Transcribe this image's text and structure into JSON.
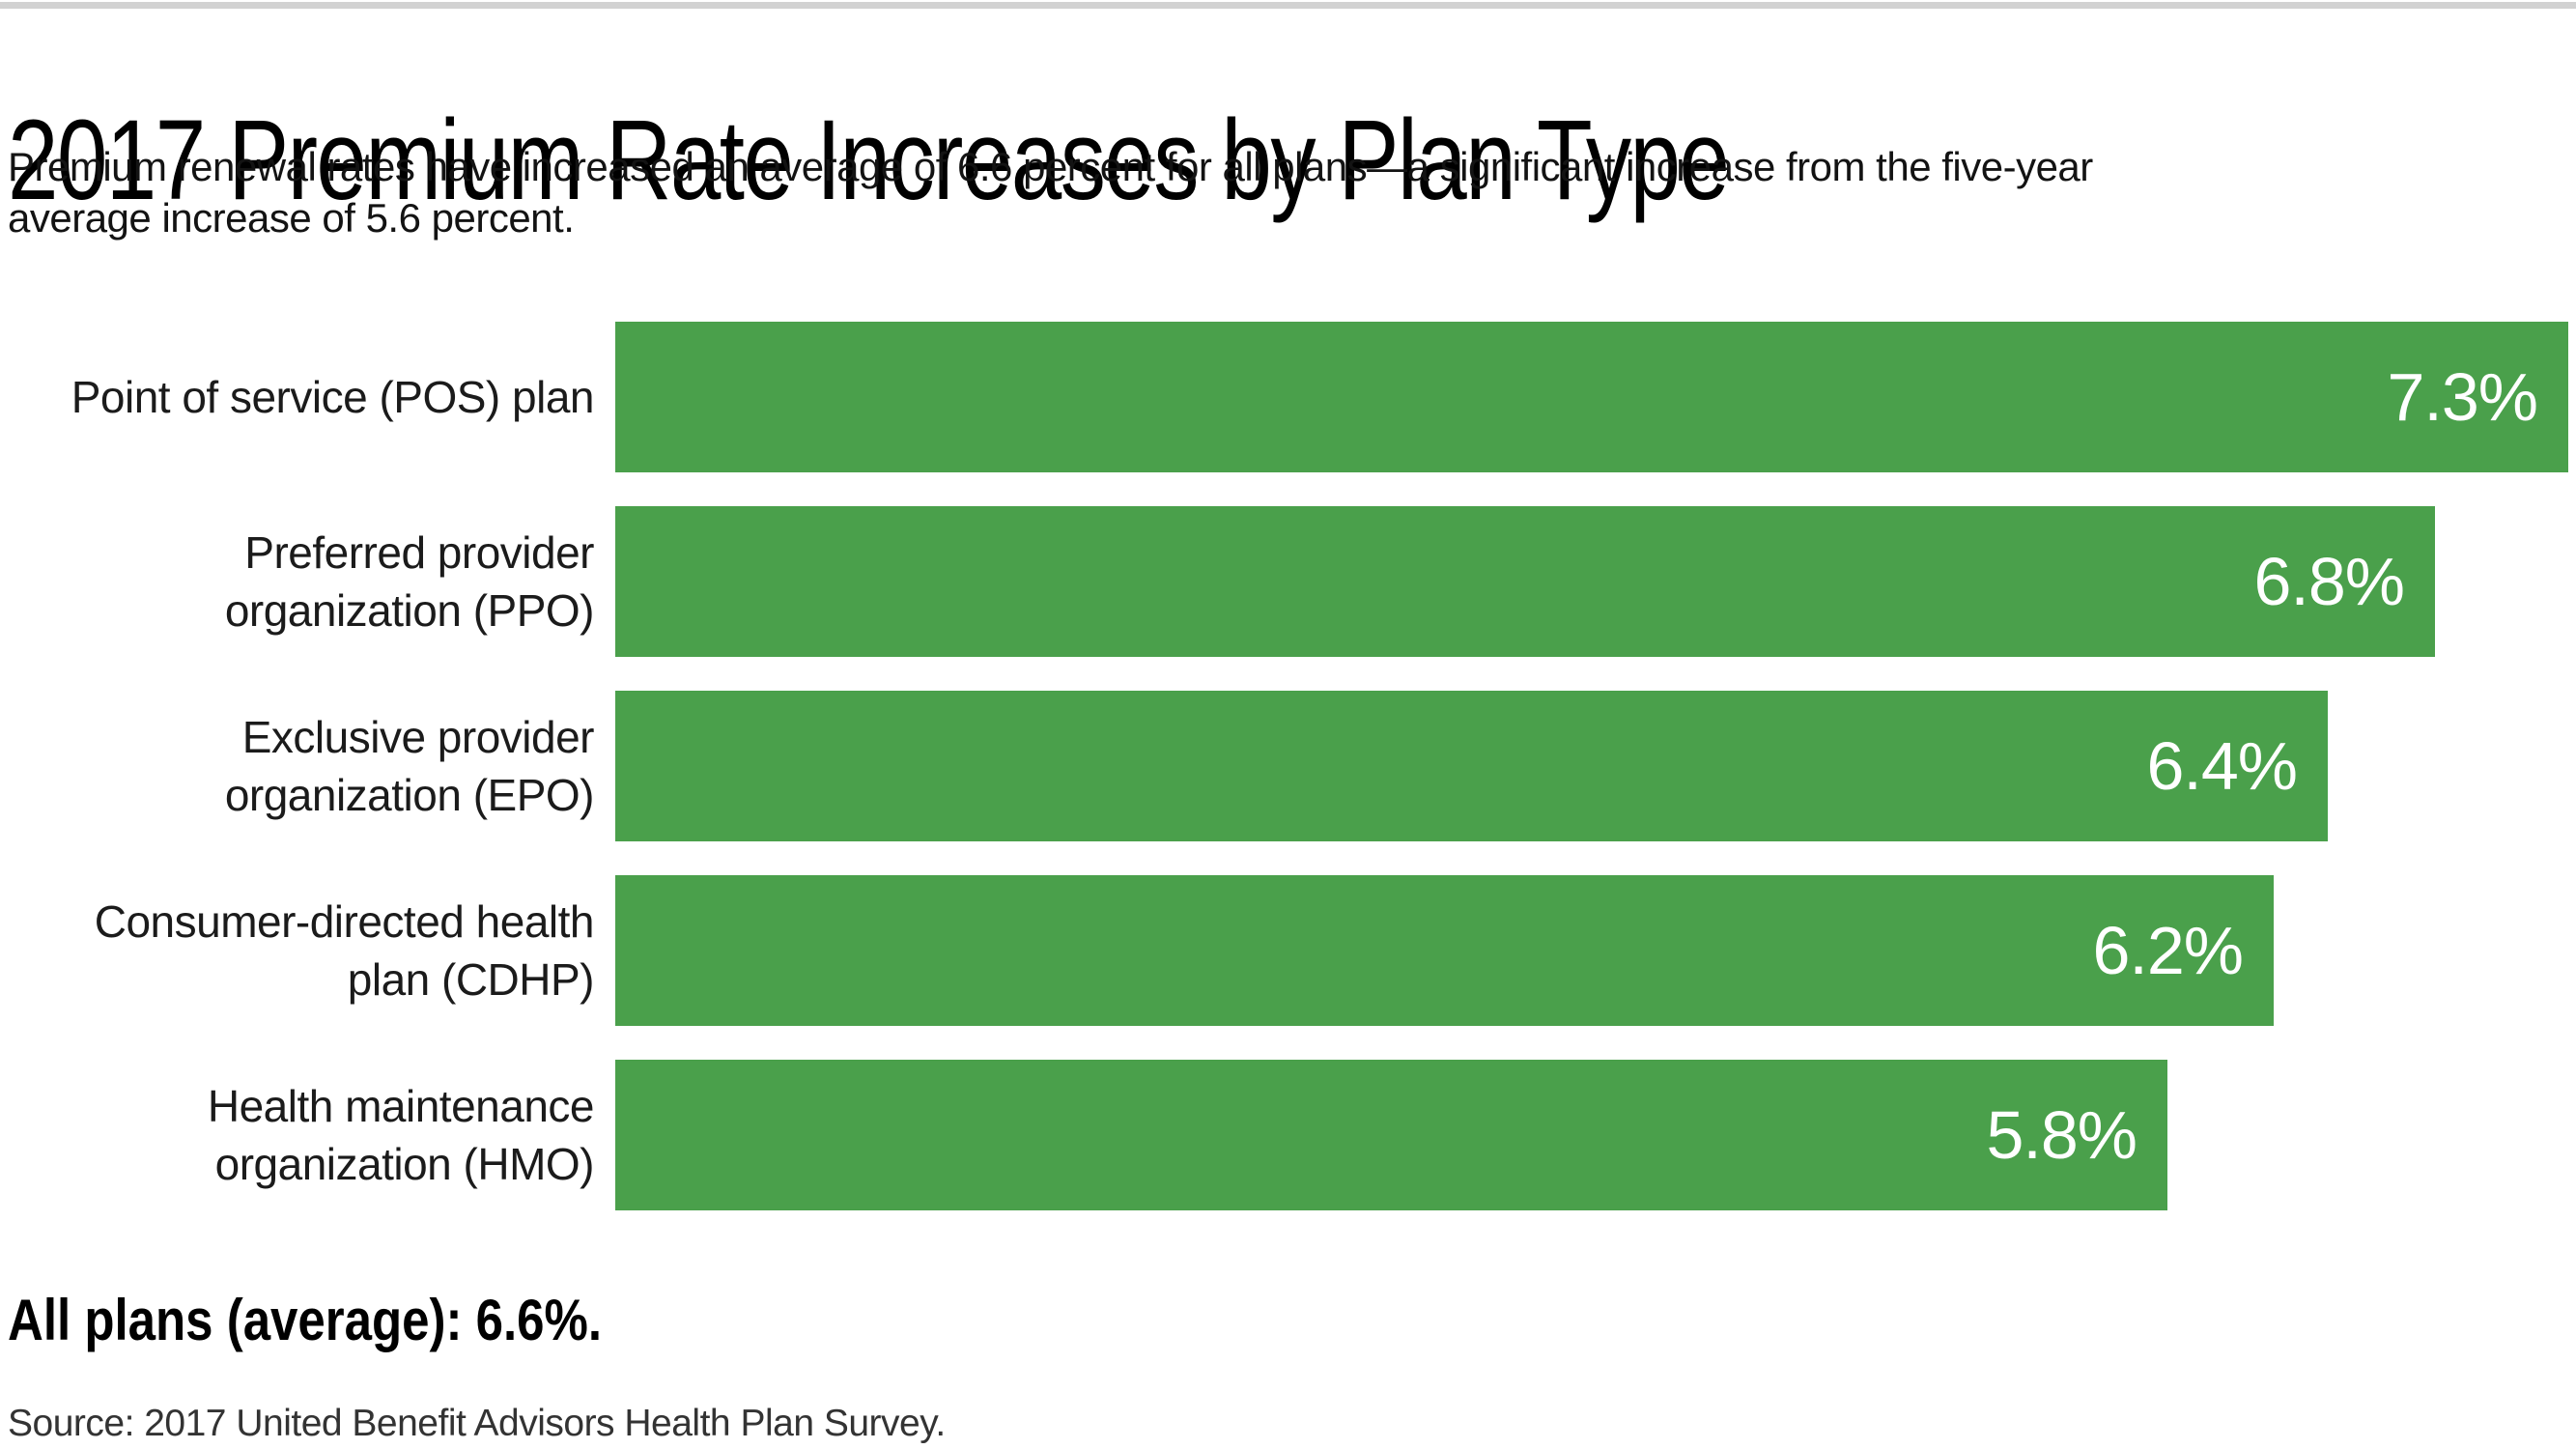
{
  "page": {
    "title": "2017 Premium Rate Increases by Plan Type",
    "subtitle_line1": "Premium renewal rates have increased an average of 6.6 percent for all plans—a significant increase from the five-year",
    "subtitle_line2": "average increase of 5.6 percent.",
    "summary": "All plans (average): 6.6%.",
    "source": "Source: 2017 United Benefit Advisors Health Plan Survey."
  },
  "colors": {
    "bar_green": "#4aa04b",
    "top_rule_gray": "#d2d2d2",
    "value_text": "#ffffff"
  },
  "chart_data": {
    "type": "bar",
    "orientation": "horizontal",
    "title": "2017 Premium Rate Increases by Plan Type",
    "xlabel": "",
    "ylabel": "",
    "unit": "percent",
    "value_suffix": "%",
    "xlim": [
      0,
      7.33
    ],
    "grid": false,
    "legend": false,
    "categories": [
      "Point of service (POS) plan",
      "Preferred provider organization (PPO)",
      "Exclusive provider organization (EPO)",
      "Consumer-directed health plan (CDHP)",
      "Health maintenance organization (HMO)"
    ],
    "values": [
      7.3,
      6.8,
      6.4,
      6.2,
      5.8
    ],
    "value_labels": [
      "7.3%",
      "6.8%",
      "6.4%",
      "6.2%",
      "5.8%"
    ],
    "label_lines": [
      [
        "Point of service (POS) plan"
      ],
      [
        "Preferred provider",
        "organization (PPO)"
      ],
      [
        "Exclusive provider",
        "organization (EPO)"
      ],
      [
        "Consumer-directed health",
        "plan (CDHP)"
      ],
      [
        "Health maintenance",
        "organization (HMO)"
      ]
    ],
    "average_all_plans": 6.6,
    "five_year_average": 5.6
  }
}
